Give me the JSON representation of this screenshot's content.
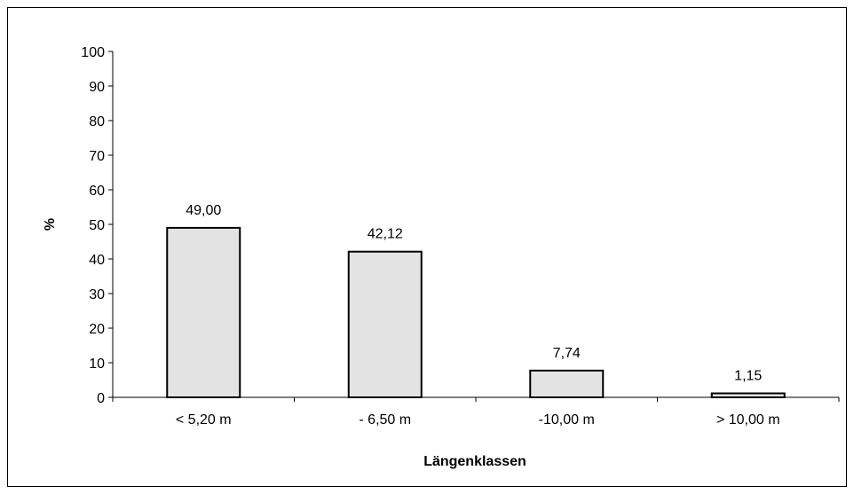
{
  "chart_data": {
    "type": "bar",
    "title": "",
    "xlabel": "Längenklassen",
    "ylabel": "%",
    "categories": [
      "< 5,20 m",
      "- 6,50 m",
      "-10,00 m",
      "> 10,00 m"
    ],
    "values": [
      49.0,
      42.12,
      7.74,
      1.15
    ],
    "value_labels": [
      "49,00",
      "42,12",
      "7,74",
      "1,15"
    ],
    "ylim": [
      0,
      100
    ],
    "yticks": [
      "0",
      "10",
      "20",
      "30",
      "40",
      "50",
      "60",
      "70",
      "80",
      "90",
      "100"
    ],
    "grid": false,
    "legend": "none",
    "bar_color": "#e3e3e3",
    "bar_edge_color": "#000000"
  }
}
